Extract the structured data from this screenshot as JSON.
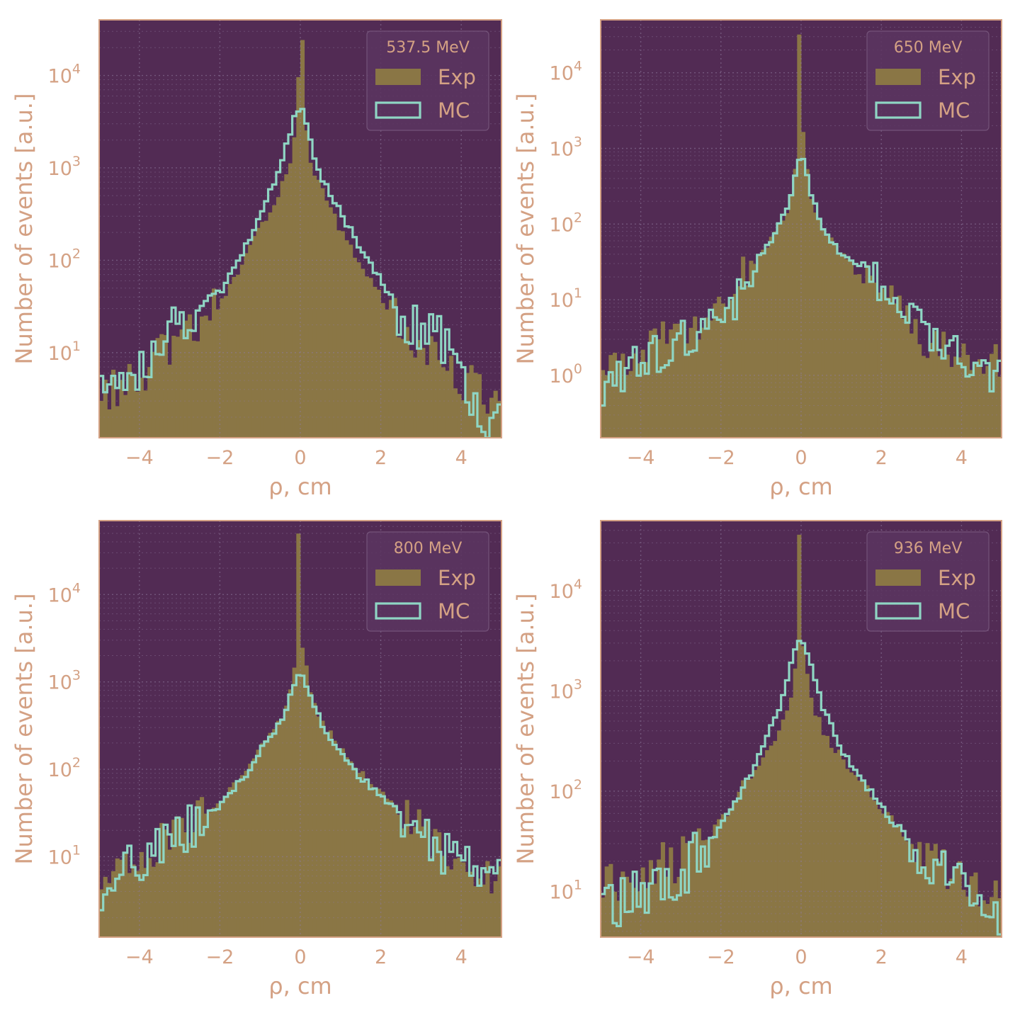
{
  "colors": {
    "plot_bg": "#522b54",
    "spine": "#d4a184",
    "text": "#d4a184",
    "exp_fill": "#8a7645",
    "mc_line": "#8fd6c4",
    "grid": "#8e7a9e",
    "legend_bg": "#5b3560",
    "legend_edge": "#7a5a80"
  },
  "chart_data": [
    {
      "type": "histogram",
      "title": "537.5 MeV",
      "xlabel": "ρ, cm",
      "ylabel": "Number of events [a.u.]",
      "xlim": [
        -5,
        5
      ],
      "ylim": [
        1.2,
        40000
      ],
      "yscale": "log",
      "xticks": [
        "−4",
        "−2",
        "0",
        "2",
        "4"
      ],
      "yticks": [
        {
          "label": "10",
          "exp": "1",
          "value": 10
        },
        {
          "label": "10",
          "exp": "2",
          "value": 100
        },
        {
          "label": "10",
          "exp": "3",
          "value": 1000
        },
        {
          "label": "10",
          "exp": "4",
          "value": 10000
        }
      ],
      "legend": {
        "position": "upper-right",
        "entries": [
          "Exp",
          "MC"
        ]
      },
      "grid": true,
      "series": [
        {
          "name": "Exp",
          "kind": "filled",
          "x": [
            -5.0,
            -4.5,
            -4.0,
            -3.5,
            -3.0,
            -2.5,
            -2.0,
            -1.5,
            -1.0,
            -0.8,
            -0.6,
            -0.4,
            -0.2,
            -0.1,
            0.0,
            0.05,
            0.1,
            0.2,
            0.4,
            0.6,
            0.8,
            1.0,
            1.5,
            2.0,
            2.5,
            3.0,
            3.5,
            4.0,
            4.5,
            5.0
          ],
          "y": [
            4,
            4,
            5,
            9,
            13,
            20,
            35,
            80,
            220,
            330,
            480,
            750,
            1500,
            3500,
            25000,
            25000,
            3500,
            1500,
            750,
            480,
            330,
            200,
            90,
            40,
            18,
            12,
            8,
            5,
            4,
            3
          ]
        },
        {
          "name": "MC",
          "kind": "step",
          "x": [
            -5.0,
            -4.5,
            -4.0,
            -3.5,
            -3.0,
            -2.5,
            -2.0,
            -1.5,
            -1.0,
            -0.8,
            -0.6,
            -0.4,
            -0.2,
            -0.1,
            0.0,
            0.1,
            0.2,
            0.4,
            0.6,
            0.8,
            1.0,
            1.5,
            2.0,
            2.5,
            3.0,
            3.5,
            4.0,
            4.5,
            5.0
          ],
          "y": [
            6,
            5,
            6,
            16,
            22,
            32,
            45,
            100,
            300,
            480,
            800,
            1400,
            2800,
            4200,
            4500,
            4200,
            2500,
            1100,
            700,
            480,
            320,
            140,
            60,
            25,
            18,
            14,
            5,
            2,
            2
          ]
        }
      ]
    },
    {
      "type": "histogram",
      "title": "650 MeV",
      "xlabel": "ρ, cm",
      "ylabel": "Number of events [a.u.]",
      "xlim": [
        -5,
        5
      ],
      "ylim": [
        0.15,
        50000
      ],
      "yscale": "log",
      "xticks": [
        "−4",
        "−2",
        "0",
        "2",
        "4"
      ],
      "yticks": [
        {
          "label": "10",
          "exp": "0",
          "value": 1
        },
        {
          "label": "10",
          "exp": "1",
          "value": 10
        },
        {
          "label": "10",
          "exp": "2",
          "value": 100
        },
        {
          "label": "10",
          "exp": "3",
          "value": 1000
        },
        {
          "label": "10",
          "exp": "4",
          "value": 10000
        }
      ],
      "legend": {
        "position": "upper-right",
        "entries": [
          "Exp",
          "MC"
        ]
      },
      "grid": true,
      "series": [
        {
          "name": "Exp",
          "kind": "filled",
          "x": [
            -5.0,
            -4.5,
            -4.0,
            -3.5,
            -3.0,
            -2.5,
            -2.0,
            -1.5,
            -1.0,
            -0.6,
            -0.3,
            -0.15,
            -0.05,
            0.0,
            0.05,
            0.15,
            0.3,
            0.6,
            1.0,
            1.5,
            2.0,
            2.5,
            3.0,
            3.5,
            4.0,
            4.5,
            5.0
          ],
          "y": [
            1.5,
            1.5,
            2,
            3,
            3.5,
            5,
            10,
            20,
            40,
            80,
            160,
            500,
            30000,
            30000,
            1500,
            500,
            160,
            80,
            40,
            25,
            15,
            8,
            3,
            2.5,
            2,
            1.5,
            1.5
          ]
        },
        {
          "name": "MC",
          "kind": "step",
          "x": [
            -5.0,
            -4.5,
            -4.0,
            -3.5,
            -3.0,
            -2.5,
            -2.0,
            -1.5,
            -1.0,
            -0.6,
            -0.3,
            -0.15,
            -0.05,
            0.0,
            0.05,
            0.15,
            0.3,
            0.6,
            1.0,
            1.5,
            2.0,
            2.5,
            3.0,
            3.5,
            4.0,
            4.5,
            5.0
          ],
          "y": [
            0.5,
            1,
            1.5,
            2,
            3,
            4,
            6,
            12,
            40,
            80,
            200,
            420,
            700,
            700,
            700,
            420,
            200,
            80,
            40,
            25,
            15,
            8,
            5,
            3,
            2,
            1,
            1
          ]
        }
      ]
    },
    {
      "type": "histogram",
      "title": "800 MeV",
      "xlabel": "ρ, cm",
      "ylabel": "Number of events [a.u.]",
      "xlim": [
        -5,
        5
      ],
      "ylim": [
        1.2,
        70000
      ],
      "yscale": "log",
      "xticks": [
        "−4",
        "−2",
        "0",
        "2",
        "4"
      ],
      "yticks": [
        {
          "label": "10",
          "exp": "1",
          "value": 10
        },
        {
          "label": "10",
          "exp": "2",
          "value": 100
        },
        {
          "label": "10",
          "exp": "3",
          "value": 1000
        },
        {
          "label": "10",
          "exp": "4",
          "value": 10000
        }
      ],
      "legend": {
        "position": "upper-right",
        "entries": [
          "Exp",
          "MC"
        ]
      },
      "grid": true,
      "series": [
        {
          "name": "Exp",
          "kind": "filled",
          "x": [
            -5.0,
            -4.5,
            -4.0,
            -3.5,
            -3.0,
            -2.5,
            -2.0,
            -1.5,
            -1.0,
            -0.6,
            -0.3,
            -0.15,
            -0.05,
            0.0,
            0.05,
            0.15,
            0.3,
            0.6,
            1.0,
            1.5,
            2.0,
            2.5,
            3.0,
            3.5,
            4.0,
            4.5,
            5.0
          ],
          "y": [
            5,
            7,
            10,
            14,
            18,
            28,
            45,
            80,
            180,
            300,
            600,
            1500,
            45000,
            45000,
            2500,
            1500,
            600,
            300,
            180,
            90,
            55,
            30,
            20,
            12,
            9,
            7,
            6
          ]
        },
        {
          "name": "MC",
          "kind": "step",
          "x": [
            -5.0,
            -4.5,
            -4.0,
            -3.5,
            -3.0,
            -2.5,
            -2.0,
            -1.5,
            -1.0,
            -0.6,
            -0.3,
            -0.15,
            -0.05,
            0.0,
            0.05,
            0.15,
            0.3,
            0.6,
            1.0,
            1.5,
            2.0,
            2.5,
            3.0,
            3.5,
            4.0,
            4.5,
            5.0
          ],
          "y": [
            4,
            6,
            9,
            13,
            18,
            26,
            40,
            70,
            160,
            300,
            550,
            900,
            1100,
            1100,
            1100,
            900,
            550,
            300,
            160,
            80,
            50,
            30,
            18,
            12,
            9,
            7,
            5
          ]
        }
      ]
    },
    {
      "type": "histogram",
      "title": "936 MeV",
      "xlabel": "ρ, cm",
      "ylabel": "Number of events [a.u.]",
      "xlim": [
        -5,
        5
      ],
      "ylim": [
        3.5,
        50000
      ],
      "yscale": "log",
      "xticks": [
        "−4",
        "−2",
        "0",
        "2",
        "4"
      ],
      "yticks": [
        {
          "label": "10",
          "exp": "1",
          "value": 10
        },
        {
          "label": "10",
          "exp": "2",
          "value": 100
        },
        {
          "label": "10",
          "exp": "3",
          "value": 1000
        },
        {
          "label": "10",
          "exp": "4",
          "value": 10000
        }
      ],
      "legend": {
        "position": "upper-right",
        "entries": [
          "Exp",
          "MC"
        ]
      },
      "grid": true,
      "series": [
        {
          "name": "Exp",
          "kind": "filled",
          "x": [
            -5.0,
            -4.5,
            -4.0,
            -3.5,
            -3.0,
            -2.5,
            -2.0,
            -1.5,
            -1.0,
            -0.6,
            -0.3,
            -0.15,
            -0.05,
            0.0,
            0.05,
            0.15,
            0.3,
            0.6,
            1.0,
            1.5,
            2.0,
            2.5,
            3.0,
            3.5,
            4.0,
            4.5,
            5.0
          ],
          "y": [
            10,
            12,
            15,
            18,
            22,
            30,
            50,
            110,
            200,
            350,
            700,
            1500,
            40000,
            40000,
            2500,
            1500,
            700,
            350,
            220,
            130,
            70,
            40,
            25,
            18,
            15,
            12,
            10
          ]
        },
        {
          "name": "MC",
          "kind": "step",
          "x": [
            -5.0,
            -4.5,
            -4.0,
            -3.5,
            -3.0,
            -2.5,
            -2.0,
            -1.5,
            -1.0,
            -0.6,
            -0.3,
            -0.15,
            -0.05,
            0.0,
            0.05,
            0.15,
            0.3,
            0.6,
            1.0,
            1.5,
            2.0,
            2.5,
            3.0,
            3.5,
            4.0,
            4.5,
            5.0
          ],
          "y": [
            6,
            8,
            10,
            12,
            15,
            25,
            45,
            100,
            250,
            600,
            1500,
            2600,
            3300,
            3300,
            3300,
            2600,
            1500,
            600,
            250,
            130,
            70,
            40,
            20,
            15,
            10,
            8,
            6
          ]
        }
      ]
    }
  ]
}
